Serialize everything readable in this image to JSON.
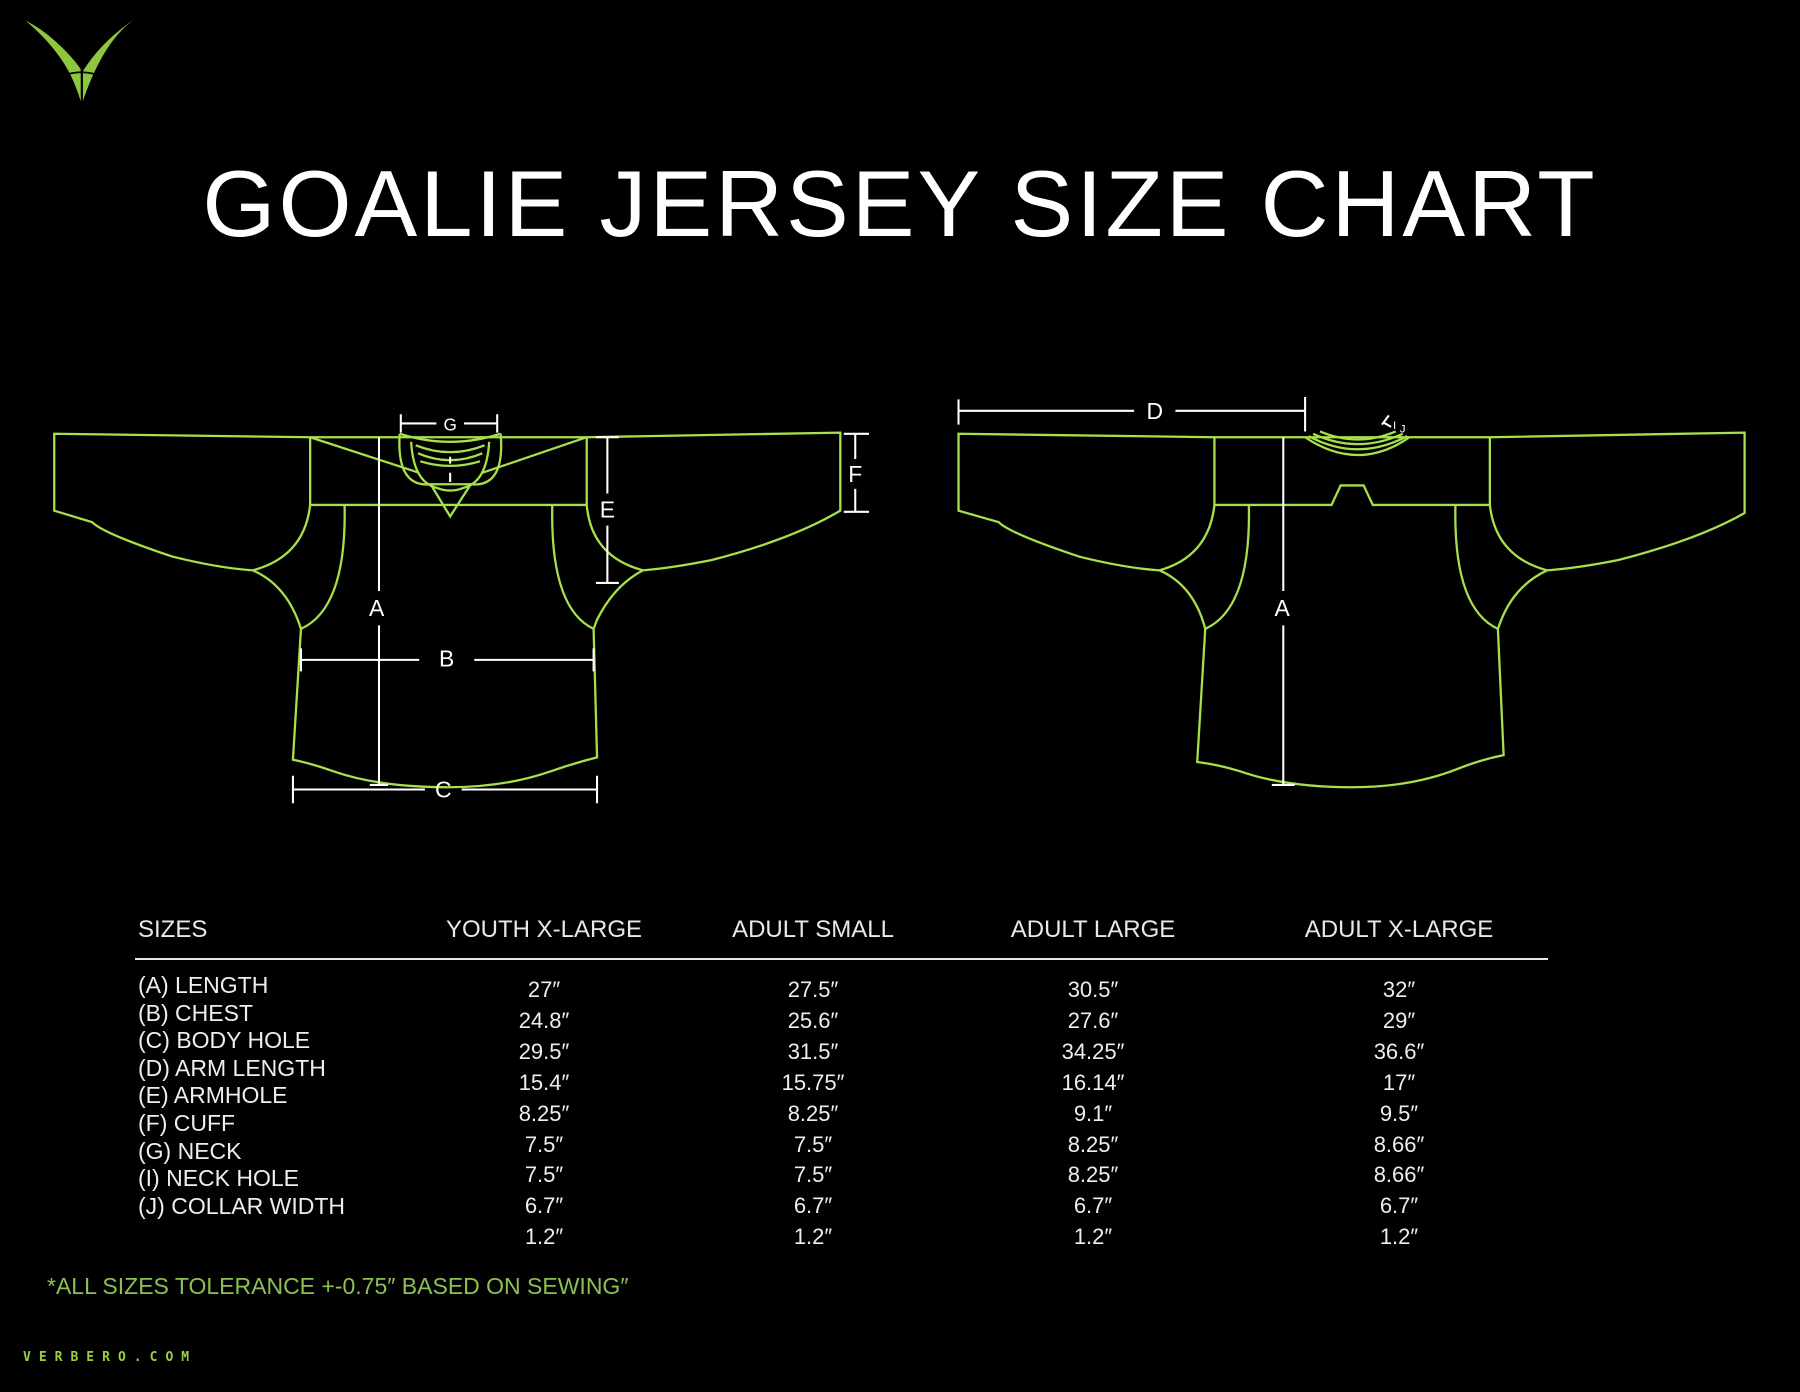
{
  "brand": {
    "logo_icon": "verbero-v-logo-icon",
    "site": "VERBERO.COM",
    "accent": "#8dc63f",
    "outline": "#a6e04a"
  },
  "title": "GOALIE JERSEY SIZE CHART",
  "diagram": {
    "front_labels": {
      "A": "A",
      "B": "B",
      "C": "C",
      "E": "E",
      "F": "F",
      "G": "G"
    },
    "back_labels": {
      "A": "A",
      "D": "D",
      "I": "I",
      "J": "J"
    }
  },
  "table": {
    "header_label": "SIZES",
    "columns": [
      "YOUTH X-LARGE",
      "ADULT SMALL",
      "ADULT LARGE",
      "ADULT X-LARGE"
    ],
    "rows": [
      {
        "label": "(A) LENGTH",
        "values": [
          "27″",
          "27.5″",
          "30.5″",
          "32″"
        ]
      },
      {
        "label": "(B) CHEST",
        "values": [
          "24.8″",
          "25.6″",
          "27.6″",
          "29″"
        ]
      },
      {
        "label": "(C) BODY HOLE",
        "values": [
          "29.5″",
          "31.5″",
          "34.25″",
          "36.6″"
        ]
      },
      {
        "label": "(D) ARM LENGTH",
        "values": [
          "15.4″",
          "15.75″",
          "16.14″",
          "17″"
        ]
      },
      {
        "label": "(E) ARMHOLE",
        "values": [
          "8.25″",
          "8.25″",
          "9.1″",
          "9.5″"
        ]
      },
      {
        "label": "(F) CUFF",
        "values": [
          "7.5″",
          "7.5″",
          "8.25″",
          "8.66″"
        ]
      },
      {
        "label": "(G) NECK",
        "values": [
          "7.5″",
          "7.5″",
          "8.25″",
          "8.66″"
        ]
      },
      {
        "label": "(I) NECK HOLE",
        "values": [
          "6.7″",
          "6.7″",
          "6.7″",
          "6.7″"
        ]
      },
      {
        "label": "(J) COLLAR WIDTH",
        "values": [
          "1.2″",
          "1.2″",
          "1.2″",
          "1.2″"
        ]
      }
    ]
  },
  "note": "*ALL SIZES TOLERANCE +-0.75″ BASED ON SEWING″"
}
